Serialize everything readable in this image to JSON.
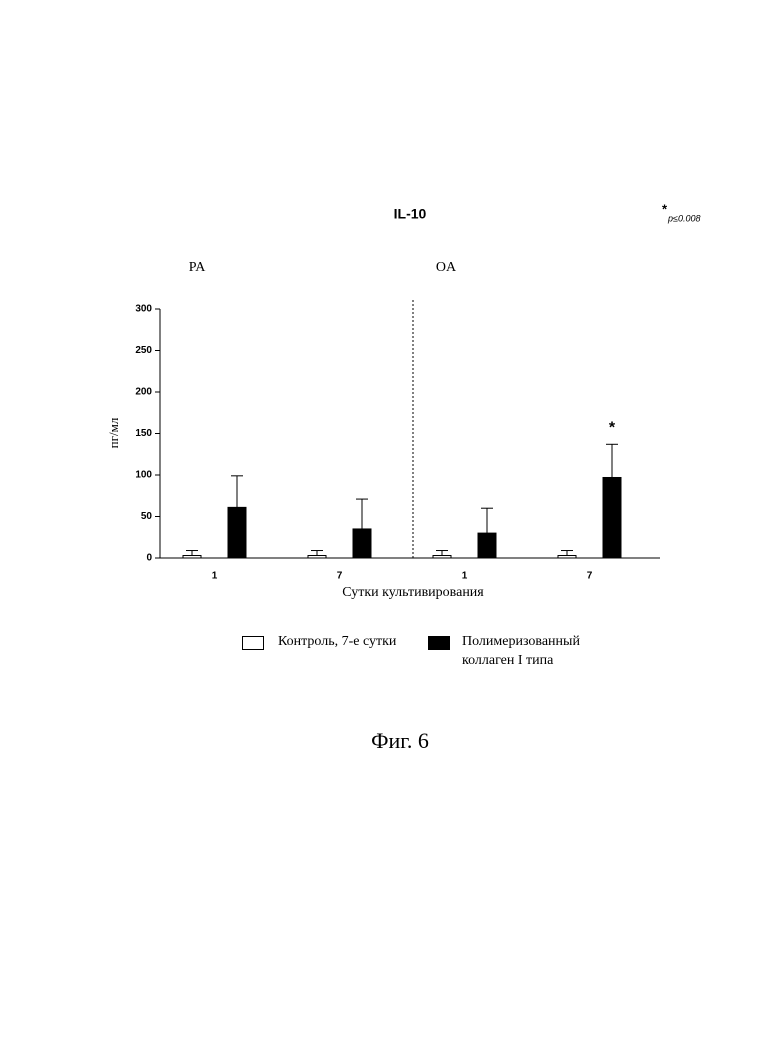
{
  "chart_data": {
    "type": "bar",
    "title": "IL-10",
    "note": {
      "marker": "*",
      "text": "p≤0.008"
    },
    "groups": [
      "PA",
      "OA"
    ],
    "categories": [
      "1",
      "7",
      "1",
      "7"
    ],
    "x_label": "Сутки культивирования",
    "y_label": "пг/мл",
    "series": [
      {
        "name": "Контроль, 7-е сутки",
        "color": "#ffffff",
        "values": [
          3,
          3,
          3,
          3
        ],
        "errors": [
          6,
          6,
          6,
          6
        ],
        "significance": [
          null,
          null,
          null,
          null
        ]
      },
      {
        "name": "Полимеризованный коллаген I типа",
        "color": "#000000",
        "values": [
          61,
          35,
          30,
          97
        ],
        "errors": [
          38,
          36,
          30,
          40
        ],
        "significance": [
          null,
          null,
          null,
          "*"
        ]
      }
    ],
    "ylim": [
      0,
      300
    ],
    "yticks": [
      0,
      50,
      100,
      150,
      200,
      250,
      300
    ],
    "grid": false
  },
  "caption": "Фиг. 6"
}
